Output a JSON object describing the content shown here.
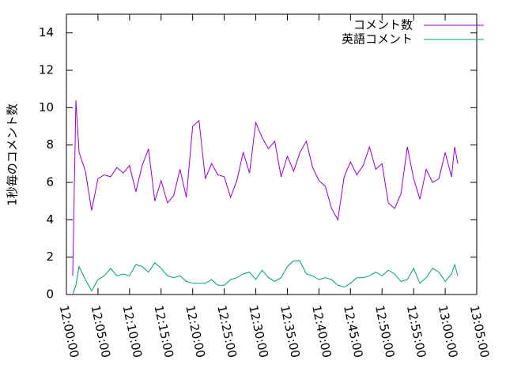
{
  "chart_data": {
    "type": "line",
    "ylabel": "1秒毎のコメント数",
    "x": [
      "12:01:00",
      "12:01:30",
      "12:02:00",
      "12:03:00",
      "12:04:00",
      "12:05:00",
      "12:06:00",
      "12:07:00",
      "12:08:00",
      "12:09:00",
      "12:10:00",
      "12:11:00",
      "12:12:00",
      "12:13:00",
      "12:14:00",
      "12:15:00",
      "12:16:00",
      "12:17:00",
      "12:18:00",
      "12:19:00",
      "12:20:00",
      "12:21:00",
      "12:22:00",
      "12:23:00",
      "12:24:00",
      "12:25:00",
      "12:26:00",
      "12:27:00",
      "12:28:00",
      "12:29:00",
      "12:30:00",
      "12:31:00",
      "12:32:00",
      "12:33:00",
      "12:34:00",
      "12:35:00",
      "12:36:00",
      "12:37:00",
      "12:38:00",
      "12:39:00",
      "12:40:00",
      "12:41:00",
      "12:42:00",
      "12:43:00",
      "12:44:00",
      "12:45:00",
      "12:46:00",
      "12:47:00",
      "12:48:00",
      "12:49:00",
      "12:50:00",
      "12:51:00",
      "12:52:00",
      "12:53:00",
      "12:54:00",
      "12:55:00",
      "12:56:00",
      "12:57:00",
      "12:58:00",
      "12:59:00",
      "13:00:00",
      "13:01:00",
      "13:01:30",
      "13:02:00"
    ],
    "series": [
      {
        "name": "コメント数",
        "color": "#9400d3",
        "values": [
          1.0,
          10.4,
          7.6,
          6.6,
          4.5,
          6.2,
          6.4,
          6.3,
          6.8,
          6.5,
          6.9,
          5.5,
          6.9,
          7.8,
          5.0,
          6.1,
          4.9,
          5.3,
          6.7,
          5.2,
          9.0,
          9.3,
          6.2,
          7.0,
          6.4,
          6.3,
          5.2,
          6.1,
          7.6,
          6.5,
          9.2,
          8.4,
          7.8,
          8.2,
          6.3,
          7.4,
          6.6,
          7.6,
          8.2,
          6.8,
          6.1,
          5.8,
          4.6,
          4.0,
          6.3,
          7.1,
          6.4,
          6.9,
          7.9,
          6.7,
          7.0,
          4.9,
          4.6,
          5.4,
          7.9,
          6.2,
          5.1,
          6.7,
          6.0,
          6.2,
          7.6,
          6.3,
          7.9,
          7.0
        ]
      },
      {
        "name": "英語コメント",
        "color": "#009e73",
        "values": [
          0.0,
          0.5,
          1.5,
          0.8,
          0.2,
          0.8,
          1.0,
          1.4,
          1.0,
          1.1,
          1.0,
          1.6,
          1.5,
          1.2,
          1.7,
          1.4,
          1.0,
          0.9,
          1.0,
          0.7,
          0.6,
          0.6,
          0.6,
          0.8,
          0.5,
          0.5,
          0.8,
          0.9,
          1.1,
          1.2,
          0.8,
          1.3,
          0.9,
          0.7,
          0.9,
          1.5,
          1.8,
          1.8,
          1.1,
          1.0,
          0.8,
          0.9,
          0.8,
          0.5,
          0.4,
          0.6,
          0.9,
          0.9,
          1.0,
          1.2,
          1.0,
          1.3,
          1.1,
          0.7,
          0.8,
          1.4,
          0.6,
          0.9,
          1.4,
          1.2,
          0.7,
          1.1,
          1.6,
          1.0
        ]
      }
    ],
    "xlim": [
      "12:00:00",
      "13:05:00"
    ],
    "xticks": [
      "12:00:00",
      "12:05:00",
      "12:10:00",
      "12:15:00",
      "12:20:00",
      "12:25:00",
      "12:30:00",
      "12:35:00",
      "12:40:00",
      "12:45:00",
      "12:50:00",
      "12:55:00",
      "13:00:00",
      "13:05:00"
    ],
    "ylim": [
      0,
      15
    ],
    "yticks": [
      0,
      2,
      4,
      6,
      8,
      10,
      12,
      14
    ],
    "legend": "top-right"
  }
}
